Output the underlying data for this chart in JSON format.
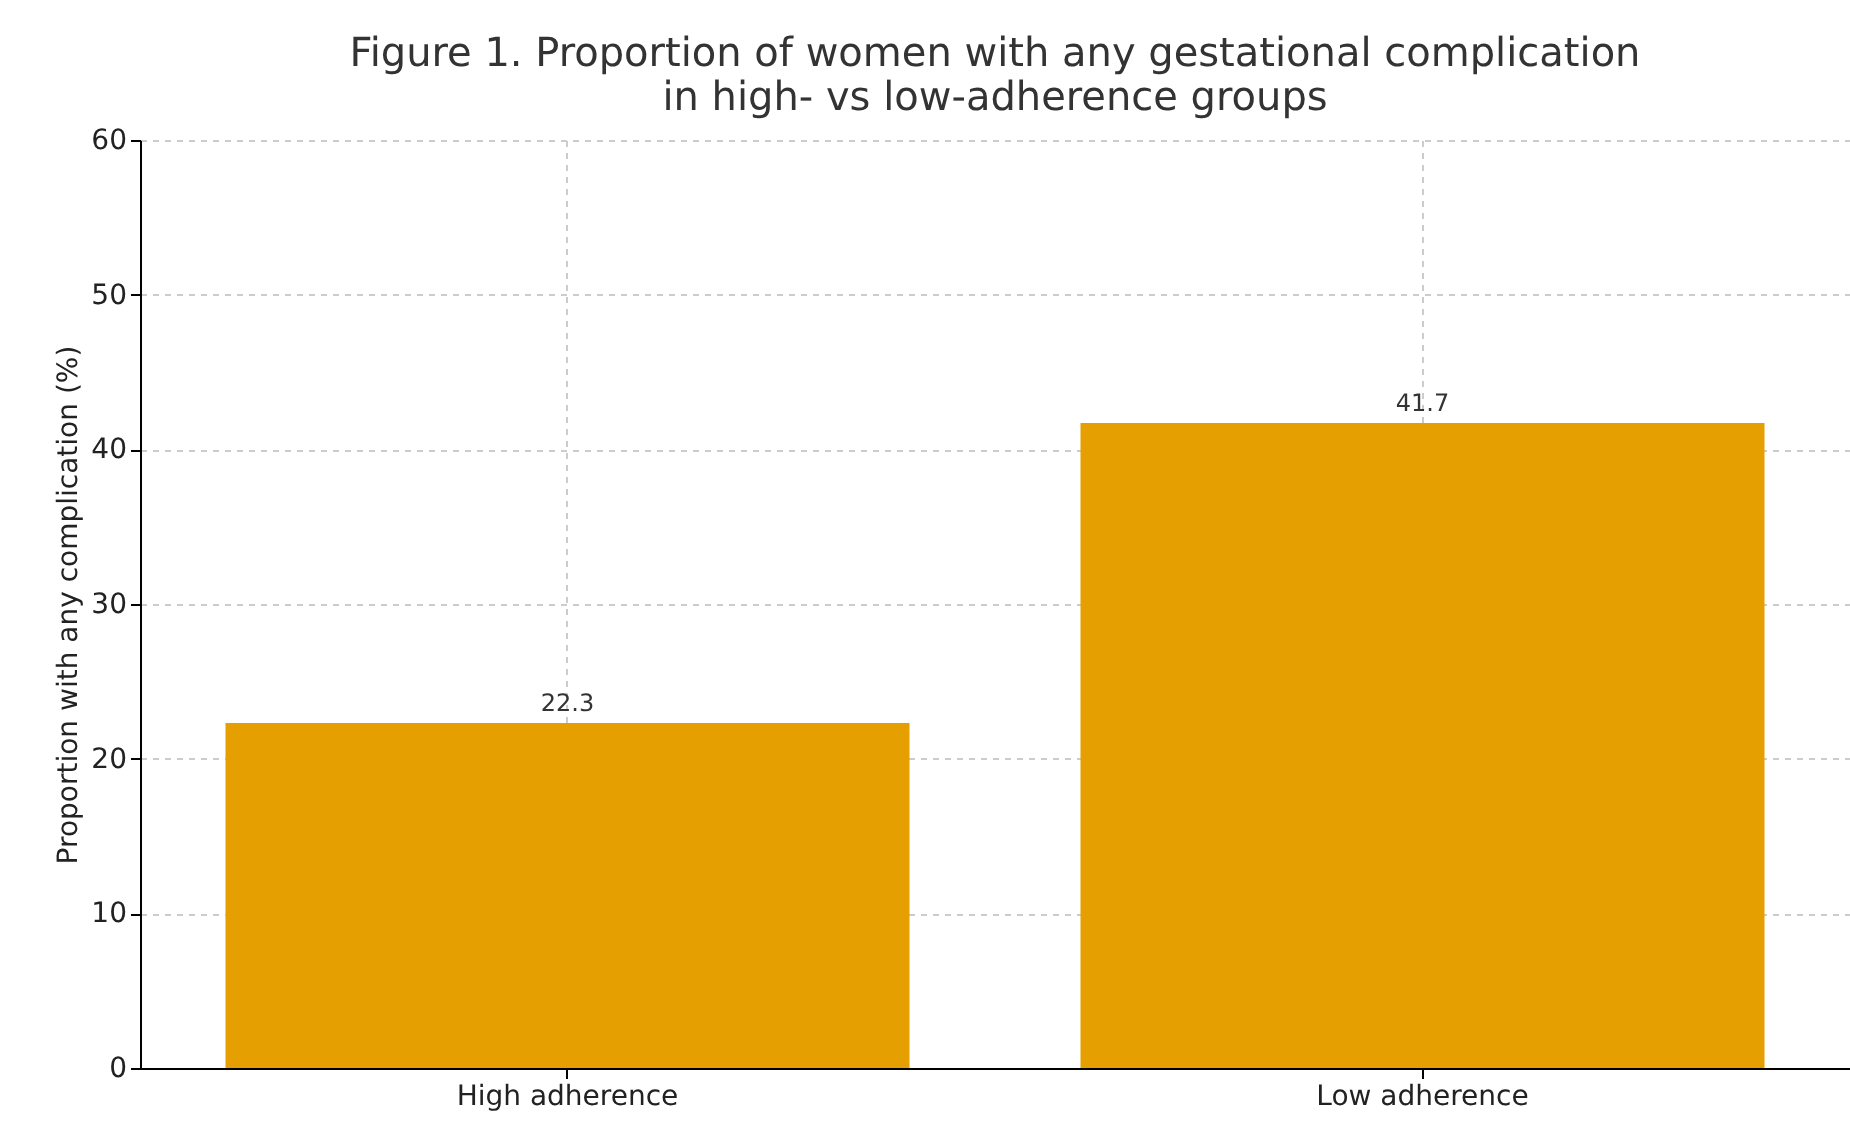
{
  "chart_data": {
    "type": "bar",
    "title": "Figure 1. Proportion of women with any gestational complication\nin high- vs low-adherence groups",
    "ylabel": "Proportion with any complication (%)",
    "categories": [
      "High adherence",
      "Low adherence"
    ],
    "values": [
      22.3,
      41.7
    ],
    "color": "#e69f00",
    "ylim": [
      0,
      60
    ],
    "yticks": [
      0,
      10,
      20,
      30,
      40,
      50,
      60
    ],
    "grid": true,
    "data_labels": true
  }
}
